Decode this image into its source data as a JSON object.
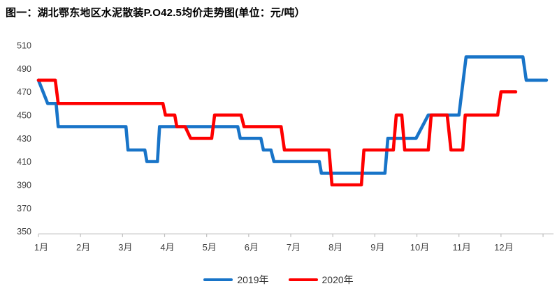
{
  "title": "图一：湖北鄂东地区水泥散装P.O42.5均价走势图(单位：元/吨）",
  "legend": {
    "items": [
      {
        "label": "2019年",
        "color": "#1874C8"
      },
      {
        "label": "2020年",
        "color": "#FE0000"
      }
    ]
  },
  "colors": {
    "axis_line": "#BFBFBF",
    "tick_label": "#404040",
    "series_2019": "#1874C8",
    "series_2020": "#FE0000"
  },
  "chart_data": {
    "type": "line",
    "title": "图一：湖北鄂东地区水泥散装P.O42.5均价走势图",
    "unit": "元/吨",
    "legend_position": "bottom",
    "grid": false,
    "x_axis": {
      "categories": [
        "1月",
        "2月",
        "3月",
        "4月",
        "5月",
        "6月",
        "7月",
        "8月",
        "9月",
        "10月",
        "11月",
        "12月"
      ],
      "range_months": [
        1,
        13.2
      ]
    },
    "y_axis": {
      "min": 350,
      "max": 510,
      "step": 20,
      "ticks": [
        350,
        370,
        390,
        410,
        430,
        450,
        470,
        490,
        510
      ]
    },
    "series": [
      {
        "name": "2019年",
        "color": "#1874C8",
        "points": [
          [
            1.0,
            480
          ],
          [
            1.22,
            460
          ],
          [
            1.42,
            460
          ],
          [
            1.47,
            440
          ],
          [
            3.08,
            440
          ],
          [
            3.13,
            420
          ],
          [
            3.53,
            420
          ],
          [
            3.58,
            410
          ],
          [
            3.83,
            410
          ],
          [
            3.88,
            440
          ],
          [
            5.74,
            440
          ],
          [
            5.8,
            430
          ],
          [
            6.29,
            430
          ],
          [
            6.35,
            420
          ],
          [
            6.53,
            420
          ],
          [
            6.6,
            410
          ],
          [
            7.68,
            410
          ],
          [
            7.73,
            400
          ],
          [
            9.24,
            400
          ],
          [
            9.31,
            430
          ],
          [
            9.98,
            430
          ],
          [
            10.27,
            450
          ],
          [
            11.0,
            450
          ],
          [
            11.17,
            500
          ],
          [
            12.52,
            500
          ],
          [
            12.6,
            480
          ],
          [
            13.08,
            480
          ]
        ]
      },
      {
        "name": "2020年",
        "color": "#FE0000",
        "points": [
          [
            1.0,
            480
          ],
          [
            1.4,
            480
          ],
          [
            1.47,
            460
          ],
          [
            3.96,
            460
          ],
          [
            4.02,
            450
          ],
          [
            4.24,
            450
          ],
          [
            4.29,
            440
          ],
          [
            4.49,
            440
          ],
          [
            4.62,
            430
          ],
          [
            5.12,
            430
          ],
          [
            5.19,
            450
          ],
          [
            5.82,
            450
          ],
          [
            5.89,
            440
          ],
          [
            6.77,
            440
          ],
          [
            6.85,
            420
          ],
          [
            7.91,
            420
          ],
          [
            7.98,
            390
          ],
          [
            8.68,
            390
          ],
          [
            8.74,
            420
          ],
          [
            9.44,
            420
          ],
          [
            9.51,
            450
          ],
          [
            9.64,
            450
          ],
          [
            9.71,
            420
          ],
          [
            10.27,
            420
          ],
          [
            10.34,
            450
          ],
          [
            10.72,
            450
          ],
          [
            10.81,
            420
          ],
          [
            11.09,
            420
          ],
          [
            11.15,
            450
          ],
          [
            11.92,
            450
          ],
          [
            12.0,
            470
          ],
          [
            12.35,
            470
          ]
        ]
      }
    ]
  }
}
